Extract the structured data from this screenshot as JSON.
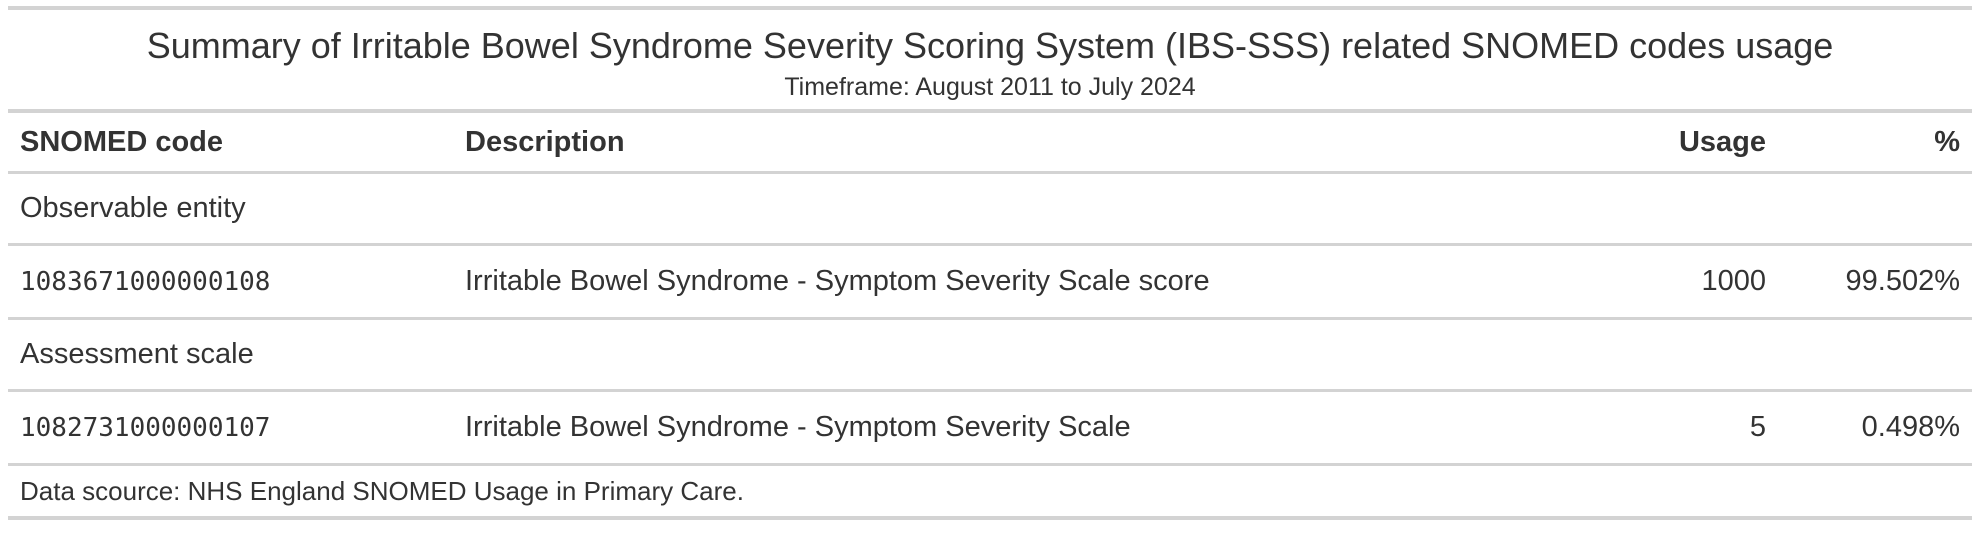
{
  "title": "Summary of Irritable Bowel Syndrome Severity Scoring System (IBS-SSS) related SNOMED codes usage",
  "subtitle": "Timeframe: August 2011 to July 2024",
  "columns": {
    "code": "SNOMED code",
    "description": "Description",
    "usage": "Usage",
    "percent": "%"
  },
  "groups": [
    {
      "label": "Observable entity",
      "rows": [
        {
          "code": "1083671000000108",
          "description": "Irritable Bowel Syndrome - Symptom Severity Scale score",
          "usage": "1000",
          "percent": "99.502%"
        }
      ]
    },
    {
      "label": "Assessment scale",
      "rows": [
        {
          "code": "1082731000000107",
          "description": "Irritable Bowel Syndrome - Symptom Severity Scale",
          "usage": "5",
          "percent": "0.498%"
        }
      ]
    }
  ],
  "footer": "Data scource: NHS England SNOMED Usage in Primary Care."
}
